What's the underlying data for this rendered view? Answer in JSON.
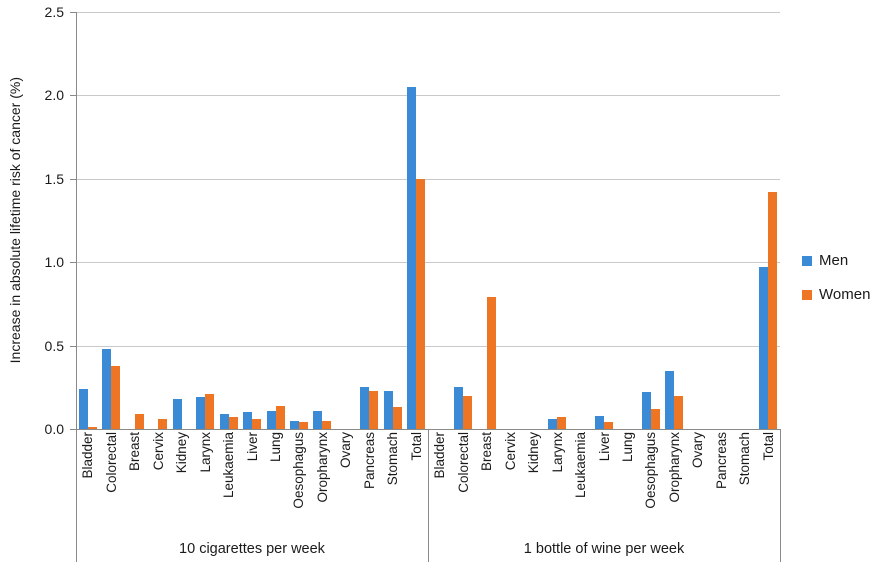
{
  "chart_data": {
    "type": "bar",
    "title": "",
    "ylabel": "Increase in absolute lifetime risk of cancer (%)",
    "xlabel": "",
    "ylim": [
      0,
      2.5
    ],
    "yticks": [
      0.0,
      0.5,
      1.0,
      1.5,
      2.0,
      2.5
    ],
    "grid": true,
    "legend_position": "right",
    "axis_color": "#898989",
    "gridline_color": "#c9c9c9",
    "categories": [
      "Bladder",
      "Colorectal",
      "Breast",
      "Cervix",
      "Kidney",
      "Larynx",
      "Leukaemia",
      "Liver",
      "Lung",
      "Oesophagus",
      "Oropharynx",
      "Ovary",
      "Pancreas",
      "Stomach",
      "Total"
    ],
    "legend": [
      {
        "name": "Men",
        "color": "#3b8ad6"
      },
      {
        "name": "Women",
        "color": "#ed7524"
      }
    ],
    "groups": [
      {
        "label": "10 cigarettes per week",
        "series": [
          {
            "name": "Men",
            "color": "#3b8ad6",
            "values": [
              0.24,
              0.48,
              0,
              0,
              0.18,
              0.19,
              0.09,
              0.1,
              0.11,
              0.05,
              0.11,
              0,
              0.25,
              0.23,
              2.05
            ]
          },
          {
            "name": "Women",
            "color": "#ed7524",
            "values": [
              0.01,
              0.38,
              0.09,
              0.06,
              0,
              0.21,
              0.07,
              0.06,
              0.14,
              0.04,
              0.05,
              0,
              0.23,
              0.13,
              1.5
            ]
          }
        ]
      },
      {
        "label": "1 bottle of wine per week",
        "series": [
          {
            "name": "Men",
            "color": "#3b8ad6",
            "values": [
              0,
              0.25,
              0,
              0,
              0,
              0.06,
              0,
              0.08,
              0,
              0.22,
              0.35,
              0,
              0,
              0,
              0.97
            ]
          },
          {
            "name": "Women",
            "color": "#ed7524",
            "values": [
              0,
              0.2,
              0.79,
              0,
              0,
              0.07,
              0,
              0.04,
              0,
              0.12,
              0.2,
              0,
              0,
              0,
              1.42
            ]
          }
        ]
      }
    ]
  }
}
